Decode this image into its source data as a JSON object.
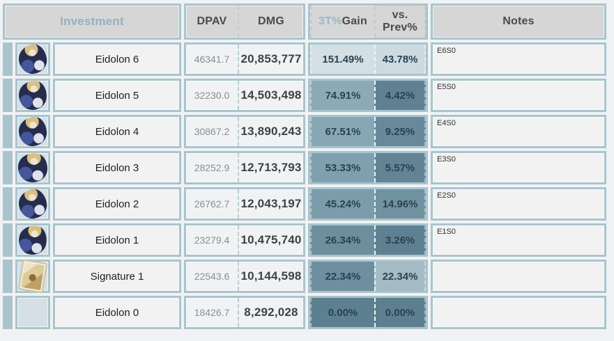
{
  "colors": {
    "page_background": "#f0f2f3",
    "border_teal": "#a9c4cc",
    "header_background": "#d6d6d6",
    "cell_background": "#f2f2f2",
    "icon_cell_background": "#d4e0e5",
    "header_text": "#4a4a4a",
    "investment_header_text": "#95b1c0",
    "gain_accent_text": "#9bb7c6",
    "dpav_text": "#8e8e8e",
    "dmg_text": "#414141",
    "percent_text": "#2a4150",
    "heatmap_dark": "#5d8091",
    "heatmap_light": "#d3dfe4"
  },
  "table": {
    "headers": {
      "investment": "Investment",
      "dpav": "DPAV",
      "dmg": "DMG",
      "gain_accent": "3T%",
      "gain_rest": " Gain",
      "prev_line1": "vs.",
      "prev_line2": "Prev%",
      "notes": "Notes"
    },
    "rows": [
      {
        "label": "Eidolon 6",
        "dpav": "46341.7",
        "dmg": "20,853,777",
        "gain": "151.49%",
        "prev": "43.78%",
        "note": "E6S0",
        "icon": "character-portrait",
        "gain_bg": "#d3dfe4",
        "prev_bg": "#cddbe1"
      },
      {
        "label": "Eidolon 5",
        "dpav": "32230.0",
        "dmg": "14,503,498",
        "gain": "74.91%",
        "prev": "4.42%",
        "note": "E5S0",
        "icon": "character-portrait",
        "gain_bg": "#8caab6",
        "prev_bg": "#5f8192"
      },
      {
        "label": "Eidolon 4",
        "dpav": "30867.2",
        "dmg": "13,890,243",
        "gain": "67.51%",
        "prev": "9.25%",
        "note": "E4S0",
        "icon": "character-portrait",
        "gain_bg": "#88a7b4",
        "prev_bg": "#678999"
      },
      {
        "label": "Eidolon 3",
        "dpav": "28252.9",
        "dmg": "12,713,793",
        "gain": "53.33%",
        "prev": "5.57%",
        "note": "E3S0",
        "icon": "character-portrait",
        "gain_bg": "#7fa0ae",
        "prev_bg": "#628495"
      },
      {
        "label": "Eidolon 2",
        "dpav": "26762.7",
        "dmg": "12,043,197",
        "gain": "45.24%",
        "prev": "14.96%",
        "note": "E2S0",
        "icon": "character-portrait",
        "gain_bg": "#7b9dab",
        "prev_bg": "#71929f"
      },
      {
        "label": "Eidolon 1",
        "dpav": "23279.4",
        "dmg": "10,475,740",
        "gain": "26.34%",
        "prev": "3.26%",
        "note": "E1S0",
        "icon": "character-portrait",
        "gain_bg": "#6d8e9d",
        "prev_bg": "#5e8192"
      },
      {
        "label": "Signature 1",
        "dpav": "22543.6",
        "dmg": "10,144,598",
        "gain": "22.34%",
        "prev": "22.34%",
        "note": "",
        "icon": "lightcone-card",
        "gain_bg": "#6e8f9f",
        "prev_bg": "#a4bbc5"
      },
      {
        "label": "Eidolon 0",
        "dpav": "18426.7",
        "dmg": "8,292,028",
        "gain": "0.00%",
        "prev": "0.00%",
        "note": "",
        "icon": "none",
        "gain_bg": "#5d8091",
        "prev_bg": "#5d8091"
      }
    ]
  }
}
